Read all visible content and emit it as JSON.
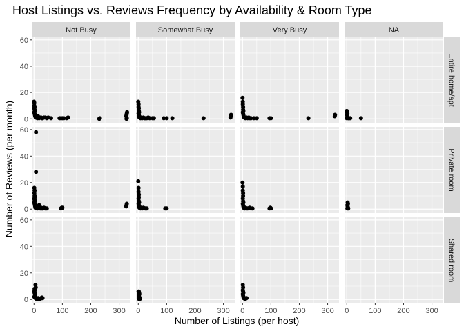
{
  "chart_data": {
    "type": "scatter",
    "title": "Host Listings vs. Reviews Frequency by Availability & Room Type",
    "xlabel": "Number of Listings (per host)",
    "ylabel": "Number of Reviews (per month)",
    "xlim": [
      -8,
      340
    ],
    "ylim": [
      -3,
      62
    ],
    "xticks": [
      0,
      100,
      200,
      300
    ],
    "yticks": [
      0,
      20,
      40,
      60
    ],
    "grid": true,
    "facet_columns": [
      "Not Busy",
      "Somewhat Busy",
      "Very Busy",
      "NA"
    ],
    "facet_rows": [
      "Entire home/apt",
      "Private room",
      "Shared room"
    ],
    "panels": [
      {
        "col": 0,
        "row": 0,
        "points": [
          [
            0,
            13
          ],
          [
            1,
            12
          ],
          [
            1,
            10
          ],
          [
            2,
            9
          ],
          [
            1,
            8
          ],
          [
            2,
            7
          ],
          [
            3,
            6
          ],
          [
            1,
            5
          ],
          [
            2,
            4
          ],
          [
            3,
            3
          ],
          [
            4,
            2
          ],
          [
            5,
            2
          ],
          [
            6,
            1
          ],
          [
            8,
            1
          ],
          [
            10,
            1
          ],
          [
            12,
            0.5
          ],
          [
            14,
            2
          ],
          [
            16,
            1
          ],
          [
            18,
            0.5
          ],
          [
            22,
            1
          ],
          [
            25,
            1
          ],
          [
            28,
            0.5
          ],
          [
            30,
            0.5
          ],
          [
            35,
            1
          ],
          [
            40,
            1
          ],
          [
            45,
            0.5
          ],
          [
            50,
            1
          ],
          [
            60,
            0.5
          ],
          [
            90,
            0.5
          ],
          [
            95,
            0.5
          ],
          [
            100,
            0.5
          ],
          [
            105,
            0.5
          ],
          [
            115,
            0.5
          ],
          [
            120,
            1
          ],
          [
            230,
            0
          ],
          [
            232,
            0.5
          ],
          [
            325,
            2
          ],
          [
            326,
            3
          ],
          [
            327,
            4
          ],
          [
            328,
            5
          ],
          [
            327,
            0.5
          ],
          [
            326,
            0
          ]
        ]
      },
      {
        "col": 1,
        "row": 0,
        "points": [
          [
            0,
            13
          ],
          [
            1,
            11
          ],
          [
            1,
            9
          ],
          [
            2,
            8
          ],
          [
            2,
            6
          ],
          [
            3,
            5
          ],
          [
            1,
            4
          ],
          [
            2,
            3
          ],
          [
            3,
            2
          ],
          [
            4,
            1
          ],
          [
            6,
            1
          ],
          [
            8,
            0.5
          ],
          [
            10,
            1
          ],
          [
            14,
            0.5
          ],
          [
            18,
            1
          ],
          [
            22,
            0.5
          ],
          [
            25,
            0.5
          ],
          [
            30,
            0.5
          ],
          [
            35,
            1
          ],
          [
            40,
            0.5
          ],
          [
            50,
            0.5
          ],
          [
            55,
            0.5
          ],
          [
            90,
            0.5
          ],
          [
            100,
            0.5
          ],
          [
            120,
            0.5
          ],
          [
            230,
            0.5
          ],
          [
            325,
            1
          ],
          [
            326,
            2
          ],
          [
            327,
            3
          ]
        ]
      },
      {
        "col": 2,
        "row": 0,
        "points": [
          [
            0,
            16
          ],
          [
            1,
            13
          ],
          [
            1,
            11
          ],
          [
            2,
            9
          ],
          [
            2,
            7
          ],
          [
            3,
            6
          ],
          [
            1,
            5
          ],
          [
            2,
            4
          ],
          [
            3,
            3
          ],
          [
            4,
            2
          ],
          [
            6,
            1
          ],
          [
            8,
            1
          ],
          [
            10,
            0.5
          ],
          [
            14,
            1
          ],
          [
            18,
            0.5
          ],
          [
            22,
            1
          ],
          [
            26,
            0.5
          ],
          [
            30,
            0.5
          ],
          [
            40,
            0.5
          ],
          [
            50,
            0.5
          ],
          [
            95,
            0.5
          ],
          [
            100,
            0.5
          ],
          [
            232,
            0.5
          ],
          [
            325,
            2
          ],
          [
            326,
            3
          ]
        ]
      },
      {
        "col": 3,
        "row": 0,
        "points": [
          [
            0,
            6
          ],
          [
            1,
            5
          ],
          [
            2,
            4
          ],
          [
            1,
            3
          ],
          [
            2,
            2
          ],
          [
            3,
            1
          ],
          [
            0,
            0.5
          ],
          [
            5,
            0.5
          ],
          [
            8,
            0.5
          ],
          [
            12,
            0.5
          ],
          [
            50,
            0.5
          ]
        ]
      },
      {
        "col": 0,
        "row": 1,
        "points": [
          [
            7,
            58
          ],
          [
            7,
            28
          ],
          [
            1,
            16
          ],
          [
            2,
            14
          ],
          [
            1,
            12
          ],
          [
            2,
            10
          ],
          [
            3,
            9
          ],
          [
            1,
            8
          ],
          [
            2,
            7
          ],
          [
            3,
            6
          ],
          [
            1,
            5
          ],
          [
            2,
            4
          ],
          [
            3,
            3
          ],
          [
            4,
            2
          ],
          [
            5,
            1
          ],
          [
            6,
            1
          ],
          [
            8,
            2
          ],
          [
            10,
            1
          ],
          [
            12,
            0.5
          ],
          [
            15,
            1
          ],
          [
            18,
            3
          ],
          [
            20,
            1
          ],
          [
            22,
            0.5
          ],
          [
            25,
            1
          ],
          [
            28,
            0.5
          ],
          [
            30,
            0.5
          ],
          [
            35,
            1
          ],
          [
            40,
            0.5
          ],
          [
            45,
            0.5
          ],
          [
            95,
            0.5
          ],
          [
            98,
            1
          ],
          [
            100,
            1
          ],
          [
            325,
            2
          ],
          [
            326,
            3
          ],
          [
            327,
            4
          ]
        ]
      },
      {
        "col": 1,
        "row": 1,
        "points": [
          [
            0,
            21
          ],
          [
            1,
            16
          ],
          [
            1,
            13
          ],
          [
            2,
            11
          ],
          [
            2,
            9
          ],
          [
            1,
            8
          ],
          [
            2,
            6
          ],
          [
            3,
            5
          ],
          [
            1,
            4
          ],
          [
            2,
            3
          ],
          [
            3,
            2
          ],
          [
            4,
            1
          ],
          [
            6,
            1
          ],
          [
            8,
            0.5
          ],
          [
            10,
            1
          ],
          [
            14,
            0.5
          ],
          [
            18,
            1
          ],
          [
            25,
            0.5
          ],
          [
            30,
            0.5
          ],
          [
            95,
            0.5
          ],
          [
            100,
            0.5
          ]
        ]
      },
      {
        "col": 2,
        "row": 1,
        "points": [
          [
            0,
            20
          ],
          [
            1,
            17
          ],
          [
            1,
            14
          ],
          [
            2,
            12
          ],
          [
            2,
            10
          ],
          [
            1,
            8
          ],
          [
            2,
            6
          ],
          [
            3,
            5
          ],
          [
            1,
            4
          ],
          [
            2,
            3
          ],
          [
            3,
            2
          ],
          [
            4,
            1
          ],
          [
            6,
            1
          ],
          [
            8,
            0.5
          ],
          [
            10,
            1
          ],
          [
            14,
            0.5
          ],
          [
            18,
            0.5
          ],
          [
            25,
            1
          ],
          [
            30,
            0.5
          ],
          [
            35,
            0.5
          ],
          [
            95,
            0.5
          ],
          [
            98,
            1
          ],
          [
            100,
            0.5
          ]
        ]
      },
      {
        "col": 3,
        "row": 1,
        "points": [
          [
            3,
            5
          ],
          [
            4,
            4
          ],
          [
            2,
            3
          ],
          [
            3,
            2
          ],
          [
            4,
            1
          ],
          [
            2,
            0.5
          ],
          [
            5,
            0.5
          ]
        ]
      },
      {
        "col": 0,
        "row": 2,
        "points": [
          [
            5,
            11
          ],
          [
            6,
            9
          ],
          [
            2,
            8
          ],
          [
            3,
            7
          ],
          [
            1,
            6
          ],
          [
            2,
            5
          ],
          [
            3,
            4
          ],
          [
            4,
            3
          ],
          [
            1,
            2
          ],
          [
            2,
            2
          ],
          [
            5,
            1
          ],
          [
            6,
            1
          ],
          [
            8,
            0.5
          ],
          [
            10,
            1
          ],
          [
            12,
            0.5
          ],
          [
            15,
            1
          ],
          [
            18,
            0.5
          ],
          [
            22,
            0.5
          ],
          [
            25,
            1
          ],
          [
            28,
            1.5
          ],
          [
            30,
            1
          ]
        ]
      },
      {
        "col": 1,
        "row": 2,
        "points": [
          [
            1,
            6
          ],
          [
            2,
            6
          ],
          [
            3,
            5
          ],
          [
            4,
            4
          ],
          [
            2,
            3
          ],
          [
            3,
            2
          ],
          [
            4,
            1
          ],
          [
            5,
            1
          ],
          [
            6,
            0.5
          ],
          [
            2,
            0.5
          ]
        ]
      },
      {
        "col": 2,
        "row": 2,
        "points": [
          [
            1,
            11
          ],
          [
            2,
            9
          ],
          [
            1,
            7
          ],
          [
            2,
            6
          ],
          [
            3,
            5
          ],
          [
            1,
            4
          ],
          [
            2,
            3
          ],
          [
            3,
            2
          ],
          [
            4,
            1
          ],
          [
            6,
            1
          ],
          [
            8,
            0.5
          ],
          [
            10,
            0.5
          ],
          [
            14,
            1
          ]
        ]
      }
    ]
  }
}
